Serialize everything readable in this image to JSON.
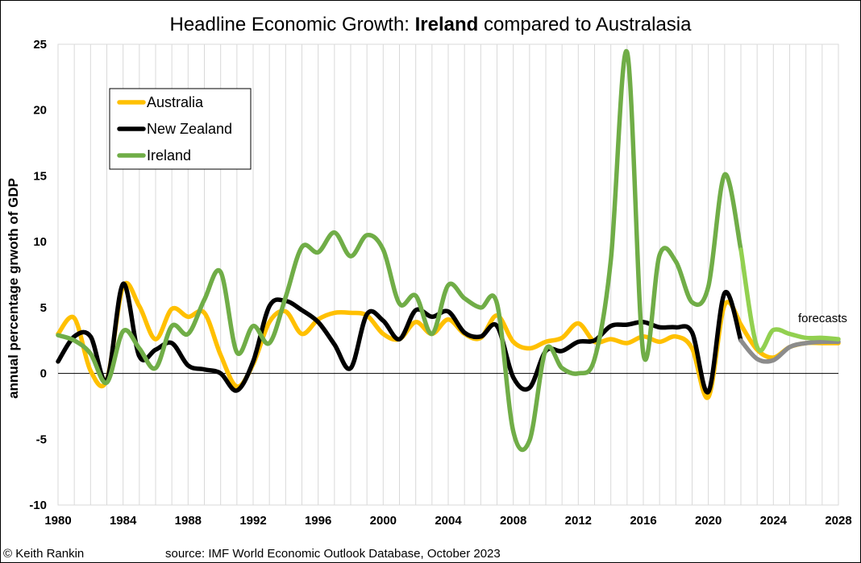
{
  "chart_data": {
    "type": "line",
    "title_prefix": "Headline Economic Growth: ",
    "title_bold": "Ireland",
    "title_suffix": " compared to Australasia",
    "ylabel": "annual percentage grwoth of GDP",
    "ylim": [
      -10,
      25
    ],
    "yticks": [
      -10,
      -5,
      0,
      5,
      10,
      15,
      20,
      25
    ],
    "xlim": [
      1980,
      2028
    ],
    "xticks": [
      1980,
      1984,
      1988,
      1992,
      1996,
      2000,
      2004,
      2008,
      2012,
      2016,
      2020,
      2024,
      2028
    ],
    "grid": "vertical",
    "legend_position": "top-left",
    "forecast_start": 2022,
    "x": [
      1980,
      1981,
      1982,
      1983,
      1984,
      1985,
      1986,
      1987,
      1988,
      1989,
      1990,
      1991,
      1992,
      1993,
      1994,
      1995,
      1996,
      1997,
      1998,
      1999,
      2000,
      2001,
      2002,
      2003,
      2004,
      2005,
      2006,
      2007,
      2008,
      2009,
      2010,
      2011,
      2012,
      2013,
      2014,
      2015,
      2016,
      2017,
      2018,
      2019,
      2020,
      2021,
      2022,
      2023,
      2024,
      2025,
      2026,
      2027,
      2028
    ],
    "series": [
      {
        "name": "Australia",
        "color": "#FFC000",
        "forecast_color": "#FFC000",
        "values": [
          3.0,
          4.2,
          0.2,
          -0.5,
          6.6,
          5.1,
          2.6,
          4.9,
          4.3,
          4.6,
          1.4,
          -1.0,
          0.7,
          3.9,
          4.7,
          3.0,
          4.1,
          4.6,
          4.6,
          4.4,
          3.0,
          2.6,
          3.9,
          3.0,
          4.1,
          3.0,
          2.7,
          4.4,
          2.4,
          1.9,
          2.4,
          2.7,
          3.8,
          2.4,
          2.6,
          2.3,
          2.8,
          2.4,
          2.8,
          1.9,
          -1.8,
          5.2,
          3.7,
          1.8,
          1.2,
          2.0,
          2.3,
          2.3,
          2.3
        ]
      },
      {
        "name": "New Zealand",
        "color": "#000000",
        "forecast_color": "#8C8C8C",
        "values": [
          0.9,
          2.8,
          2.8,
          -0.5,
          6.8,
          1.3,
          1.8,
          2.3,
          0.6,
          0.3,
          0.0,
          -1.3,
          0.9,
          5.1,
          5.5,
          4.8,
          3.9,
          2.2,
          0.4,
          4.5,
          4.0,
          2.6,
          4.8,
          4.3,
          4.7,
          3.1,
          2.8,
          3.6,
          -0.3,
          -1.1,
          1.7,
          1.7,
          2.4,
          2.5,
          3.6,
          3.7,
          3.9,
          3.5,
          3.5,
          3.1,
          -1.4,
          6.1,
          2.5,
          1.1,
          1.0,
          2.0,
          2.3,
          2.4,
          2.4
        ]
      },
      {
        "name": "Ireland",
        "color": "#70AD47",
        "forecast_color": "#92D050",
        "values": [
          2.9,
          2.5,
          1.5,
          -0.7,
          3.2,
          1.9,
          0.4,
          3.6,
          3.0,
          5.6,
          7.7,
          1.6,
          3.6,
          2.3,
          5.8,
          9.6,
          9.2,
          10.7,
          8.9,
          10.5,
          9.4,
          5.3,
          5.9,
          3.0,
          6.7,
          5.7,
          5.0,
          5.3,
          -4.4,
          -5.1,
          1.8,
          0.4,
          0.0,
          1.1,
          8.6,
          24.4,
          1.5,
          9.0,
          8.5,
          5.4,
          6.6,
          15.1,
          9.4,
          2.0,
          3.3,
          3.0,
          2.7,
          2.7,
          2.6
        ]
      }
    ],
    "annotation": "forecasts"
  },
  "footer": {
    "copyright": "© Keith Rankin",
    "source": "source: IMF World Economic Outlook Database, October 2023"
  }
}
